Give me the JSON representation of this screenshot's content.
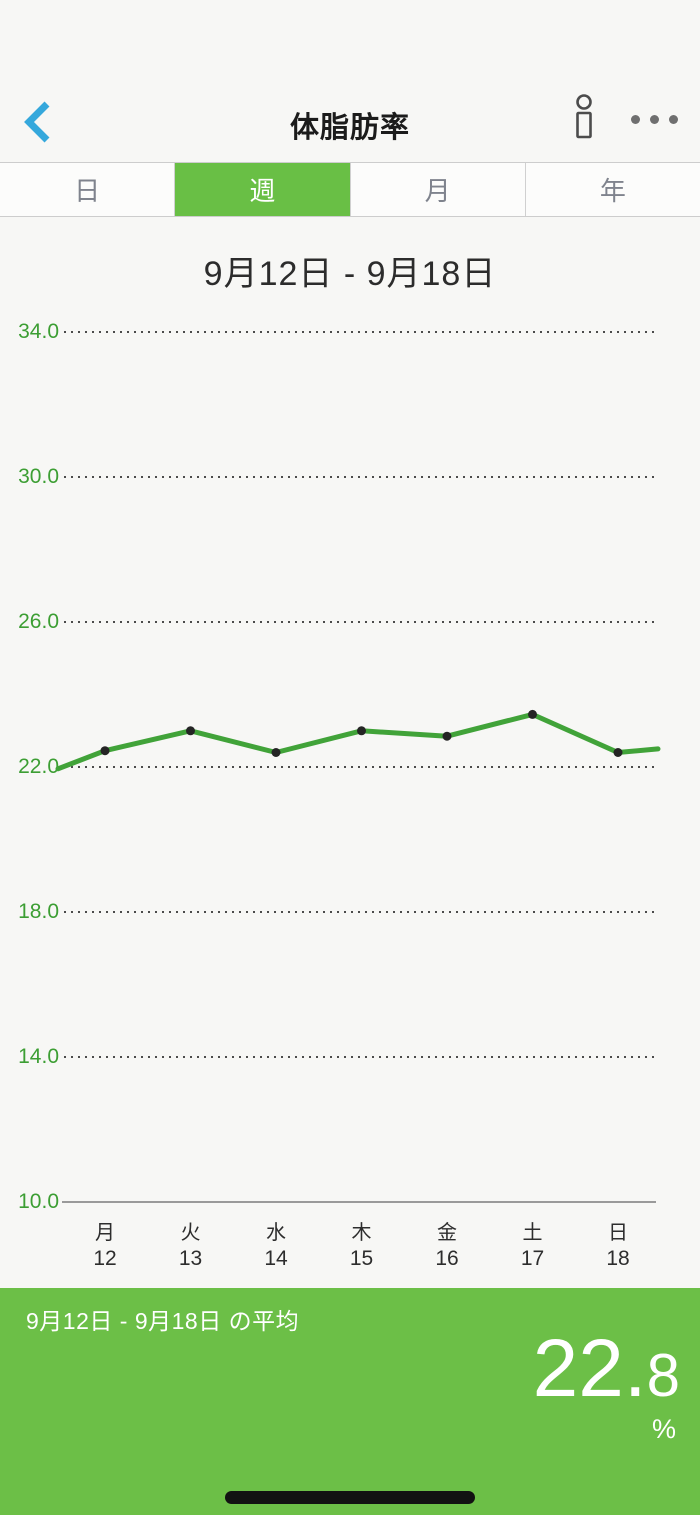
{
  "header": {
    "title": "体脂肪率",
    "back_icon": "chevron-left",
    "profile_icon": "person-outline",
    "more_icon": "ellipsis"
  },
  "tabs": [
    {
      "label": "日",
      "selected": false
    },
    {
      "label": "週",
      "selected": true
    },
    {
      "label": "月",
      "selected": false
    },
    {
      "label": "年",
      "selected": false
    }
  ],
  "period_title": "9月12日 - 9月18日",
  "chart_data": {
    "type": "line",
    "title": "9月12日 - 9月18日",
    "categories": [
      {
        "weekday": "月",
        "day": "12"
      },
      {
        "weekday": "火",
        "day": "13"
      },
      {
        "weekday": "水",
        "day": "14"
      },
      {
        "weekday": "木",
        "day": "15"
      },
      {
        "weekday": "金",
        "day": "16"
      },
      {
        "weekday": "土",
        "day": "17"
      },
      {
        "weekday": "日",
        "day": "18"
      }
    ],
    "values": [
      22.45,
      23.0,
      22.4,
      23.0,
      22.85,
      23.45,
      22.4
    ],
    "edge_values": {
      "leading": 21.95,
      "trailing": 22.5
    },
    "average": 22.8,
    "unit": "%",
    "y_ticks": [
      "34.0",
      "30.0",
      "26.0",
      "22.0",
      "18.0",
      "14.0",
      "10.0"
    ],
    "y_tick_values": [
      34,
      30,
      26,
      22,
      18,
      14,
      10
    ],
    "ylim": [
      10,
      34.5
    ],
    "grid": "horizontal-dotted, bottom axis solid",
    "legend": "none",
    "line_color": "#41a339",
    "marker_color": "#242424",
    "tick_color": "#3c9e33"
  },
  "footer": {
    "average_label": "9月12日 - 9月18日 の平均",
    "value_int": "22.",
    "value_dec": "8",
    "unit": "%"
  },
  "colors": {
    "background": "#f7f7f5",
    "accent_green": "#6cbf47",
    "tab_selected_green": "#69bf45",
    "tick_green": "#3c9e33",
    "line_green": "#41a339",
    "back_blue": "#35a8dc",
    "tab_text_gray": "#7f838d",
    "title_black": "#1b1b1b"
  }
}
